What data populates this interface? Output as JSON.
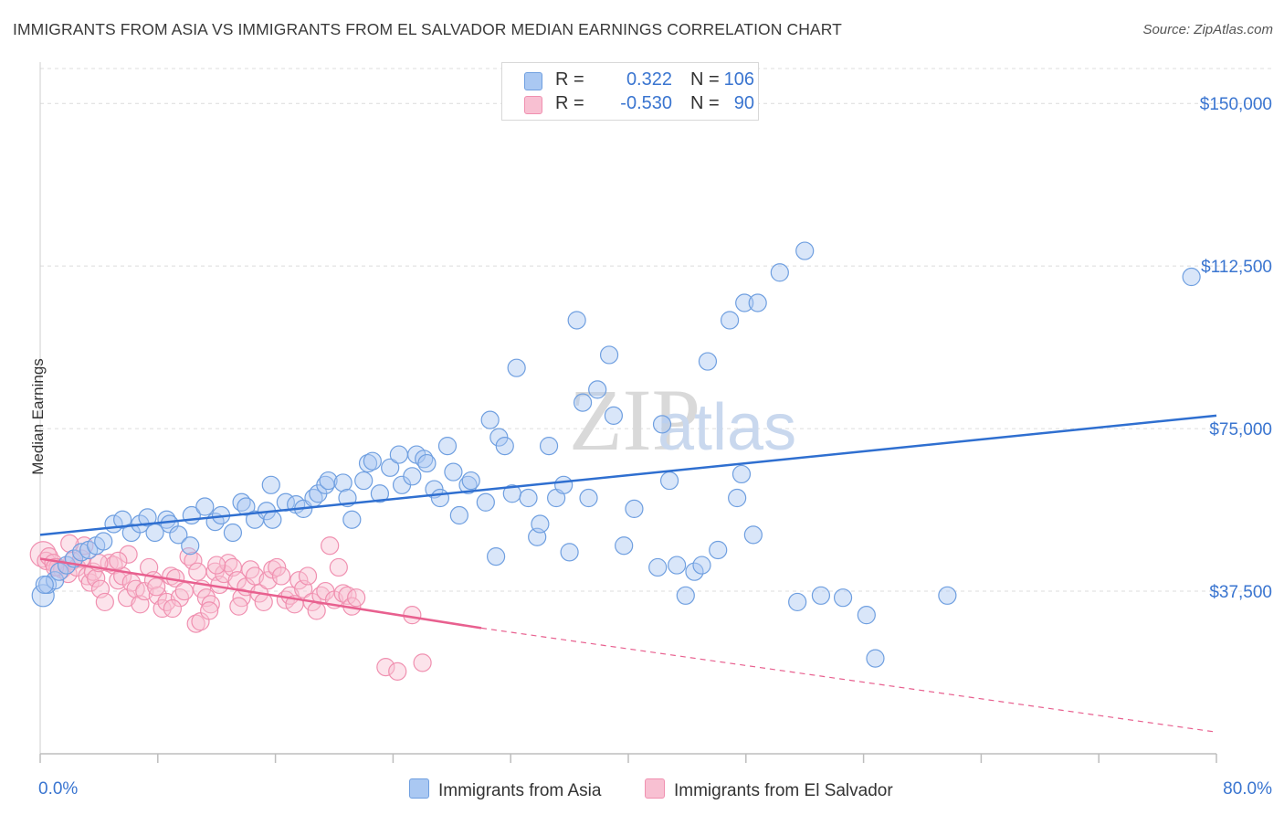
{
  "title": "IMMIGRANTS FROM ASIA VS IMMIGRANTS FROM EL SALVADOR MEDIAN EARNINGS CORRELATION CHART",
  "source": "Source: ZipAtlas.com",
  "watermark": {
    "zip": "ZIP",
    "atlas": "atlas"
  },
  "colors": {
    "asia": "#6f9fe0",
    "asia_fill": "#aac8f2",
    "asia_line": "#2f6fd0",
    "elsal": "#f090b0",
    "elsal_fill": "#f8c0d2",
    "elsal_line": "#e8608f",
    "axis_text": "#3a75d0",
    "grid": "#dcdcdc"
  },
  "legend": {
    "r_label": "R =",
    "n_label": "N =",
    "rows": [
      {
        "series": "asia",
        "r": "0.322",
        "n": "106"
      },
      {
        "series": "elsal",
        "r": "-0.530",
        "n": "90"
      }
    ]
  },
  "bottom_legend": [
    "Immigrants from Asia",
    "Immigrants from El Salvador"
  ],
  "chart_data": {
    "type": "scatter",
    "title": "IMMIGRANTS FROM ASIA VS IMMIGRANTS FROM EL SALVADOR MEDIAN EARNINGS CORRELATION CHART",
    "xlabel": "",
    "ylabel": "Median Earnings",
    "xlim": [
      0,
      80
    ],
    "ylim": [
      0,
      157000
    ],
    "x_tick_labels": [
      "0.0%",
      "80.0%"
    ],
    "y_ticks": [
      37500,
      75000,
      112500,
      150000
    ],
    "y_tick_labels": [
      "$37,500",
      "$75,000",
      "$112,500",
      "$150,000"
    ],
    "grid": true,
    "legend_position": "top-center",
    "series": [
      {
        "name": "Immigrants from Asia",
        "r": 0.322,
        "n": 106,
        "trend": {
          "x": [
            0,
            80
          ],
          "y": [
            50500,
            78000
          ]
        },
        "points": [
          [
            0.2,
            36500
          ],
          [
            0.5,
            39000
          ],
          [
            1.0,
            40000
          ],
          [
            1.3,
            42000
          ],
          [
            1.8,
            43500
          ],
          [
            2.3,
            45000
          ],
          [
            2.8,
            46500
          ],
          [
            3.3,
            47000
          ],
          [
            3.8,
            48000
          ],
          [
            4.3,
            49000
          ],
          [
            5.0,
            53000
          ],
          [
            5.6,
            54000
          ],
          [
            6.2,
            51000
          ],
          [
            6.8,
            53000
          ],
          [
            7.3,
            54500
          ],
          [
            7.8,
            51000
          ],
          [
            8.6,
            54000
          ],
          [
            8.8,
            53000
          ],
          [
            9.4,
            50500
          ],
          [
            10.2,
            48000
          ],
          [
            10.3,
            55000
          ],
          [
            11.2,
            57000
          ],
          [
            11.9,
            53500
          ],
          [
            12.3,
            55000
          ],
          [
            13.1,
            51000
          ],
          [
            13.7,
            58000
          ],
          [
            14.0,
            57000
          ],
          [
            14.6,
            54000
          ],
          [
            15.4,
            56000
          ],
          [
            15.7,
            62000
          ],
          [
            15.8,
            54000
          ],
          [
            16.7,
            58000
          ],
          [
            17.4,
            57500
          ],
          [
            17.9,
            56500
          ],
          [
            18.6,
            59000
          ],
          [
            18.9,
            60000
          ],
          [
            19.4,
            62000
          ],
          [
            19.6,
            63000
          ],
          [
            20.6,
            62500
          ],
          [
            20.9,
            59000
          ],
          [
            21.2,
            54000
          ],
          [
            22.0,
            63000
          ],
          [
            22.3,
            67000
          ],
          [
            22.6,
            67500
          ],
          [
            23.1,
            60000
          ],
          [
            23.8,
            66000
          ],
          [
            24.4,
            69000
          ],
          [
            24.6,
            62000
          ],
          [
            25.3,
            64000
          ],
          [
            25.6,
            69000
          ],
          [
            26.1,
            68000
          ],
          [
            26.3,
            67000
          ],
          [
            26.8,
            61000
          ],
          [
            27.2,
            59000
          ],
          [
            27.7,
            71000
          ],
          [
            28.1,
            65000
          ],
          [
            28.5,
            55000
          ],
          [
            29.1,
            62000
          ],
          [
            29.3,
            63000
          ],
          [
            30.3,
            58000
          ],
          [
            30.6,
            77000
          ],
          [
            31.0,
            45500
          ],
          [
            31.2,
            73000
          ],
          [
            31.6,
            71000
          ],
          [
            32.1,
            60000
          ],
          [
            32.4,
            89000
          ],
          [
            33.2,
            59000
          ],
          [
            33.8,
            50000
          ],
          [
            34.0,
            53000
          ],
          [
            34.6,
            71000
          ],
          [
            35.1,
            59000
          ],
          [
            35.6,
            62000
          ],
          [
            36.0,
            46500
          ],
          [
            36.5,
            100000
          ],
          [
            36.9,
            81000
          ],
          [
            37.3,
            59000
          ],
          [
            37.9,
            84000
          ],
          [
            38.7,
            92000
          ],
          [
            39.0,
            78000
          ],
          [
            39.7,
            48000
          ],
          [
            40.4,
            56500
          ],
          [
            42.0,
            43000
          ],
          [
            42.3,
            76000
          ],
          [
            42.8,
            63000
          ],
          [
            43.3,
            43500
          ],
          [
            43.9,
            36500
          ],
          [
            44.5,
            42000
          ],
          [
            45.0,
            43500
          ],
          [
            45.4,
            90500
          ],
          [
            46.1,
            47000
          ],
          [
            46.9,
            100000
          ],
          [
            47.4,
            59000
          ],
          [
            47.7,
            64500
          ],
          [
            47.9,
            104000
          ],
          [
            48.5,
            50500
          ],
          [
            48.8,
            104000
          ],
          [
            50.3,
            111000
          ],
          [
            51.5,
            35000
          ],
          [
            52.0,
            116000
          ],
          [
            53.1,
            36500
          ],
          [
            54.6,
            36000
          ],
          [
            56.2,
            32000
          ],
          [
            56.8,
            22000
          ],
          [
            61.7,
            36500
          ],
          [
            78.3,
            110000
          ],
          [
            0.3,
            39000
          ]
        ]
      },
      {
        "name": "Immigrants from El Salvador",
        "r": -0.53,
        "n": 90,
        "trend": {
          "x": [
            0,
            30
          ],
          "y": [
            45000,
            29000
          ]
        },
        "trend_dashed": {
          "x": [
            30,
            80
          ],
          "y": [
            29000,
            5000
          ]
        },
        "points": [
          [
            0.2,
            46000
          ],
          [
            0.4,
            44500
          ],
          [
            0.6,
            45500
          ],
          [
            0.9,
            44000
          ],
          [
            1.2,
            43000
          ],
          [
            1.5,
            42500
          ],
          [
            1.9,
            41500
          ],
          [
            2.2,
            44500
          ],
          [
            2.5,
            43000
          ],
          [
            2.8,
            45000
          ],
          [
            3.0,
            48000
          ],
          [
            3.2,
            41000
          ],
          [
            3.4,
            39500
          ],
          [
            3.6,
            42000
          ],
          [
            3.8,
            40500
          ],
          [
            4.1,
            38000
          ],
          [
            4.4,
            35000
          ],
          [
            4.7,
            44000
          ],
          [
            5.0,
            43500
          ],
          [
            5.3,
            40000
          ],
          [
            5.6,
            41000
          ],
          [
            5.9,
            36000
          ],
          [
            6.2,
            39500
          ],
          [
            6.5,
            38000
          ],
          [
            6.8,
            34500
          ],
          [
            7.1,
            37500
          ],
          [
            7.4,
            43000
          ],
          [
            7.7,
            40000
          ],
          [
            8.0,
            36500
          ],
          [
            8.3,
            33500
          ],
          [
            8.6,
            35000
          ],
          [
            8.9,
            41000
          ],
          [
            9.2,
            40500
          ],
          [
            9.5,
            36000
          ],
          [
            9.8,
            37500
          ],
          [
            10.1,
            45500
          ],
          [
            10.4,
            44500
          ],
          [
            10.7,
            42000
          ],
          [
            11.0,
            38000
          ],
          [
            11.3,
            36000
          ],
          [
            11.6,
            34500
          ],
          [
            11.9,
            42000
          ],
          [
            12.2,
            39000
          ],
          [
            12.5,
            41500
          ],
          [
            12.8,
            44000
          ],
          [
            13.1,
            43000
          ],
          [
            13.4,
            40000
          ],
          [
            13.7,
            36000
          ],
          [
            14.0,
            38500
          ],
          [
            14.3,
            42500
          ],
          [
            14.6,
            41000
          ],
          [
            14.9,
            37000
          ],
          [
            15.2,
            35000
          ],
          [
            15.5,
            40000
          ],
          [
            15.8,
            42500
          ],
          [
            16.1,
            43000
          ],
          [
            16.4,
            41000
          ],
          [
            16.7,
            35500
          ],
          [
            17.0,
            36500
          ],
          [
            17.3,
            34500
          ],
          [
            17.6,
            40000
          ],
          [
            17.9,
            38000
          ],
          [
            18.2,
            41000
          ],
          [
            18.5,
            35000
          ],
          [
            18.8,
            33000
          ],
          [
            19.1,
            36500
          ],
          [
            19.4,
            37500
          ],
          [
            19.7,
            48000
          ],
          [
            20.0,
            35500
          ],
          [
            20.3,
            43000
          ],
          [
            20.6,
            37000
          ],
          [
            20.9,
            36500
          ],
          [
            21.2,
            34000
          ],
          [
            21.5,
            36000
          ],
          [
            23.5,
            20000
          ],
          [
            24.3,
            19000
          ],
          [
            25.3,
            32000
          ],
          [
            26.0,
            21000
          ],
          [
            10.6,
            30000
          ],
          [
            10.9,
            30500
          ],
          [
            11.5,
            33000
          ],
          [
            13.5,
            34000
          ],
          [
            12.0,
            43500
          ],
          [
            9.0,
            33500
          ],
          [
            7.9,
            38500
          ],
          [
            6.0,
            46000
          ],
          [
            5.3,
            44500
          ],
          [
            4.0,
            44000
          ],
          [
            2.0,
            48500
          ],
          [
            1.0,
            43000
          ]
        ]
      }
    ]
  }
}
